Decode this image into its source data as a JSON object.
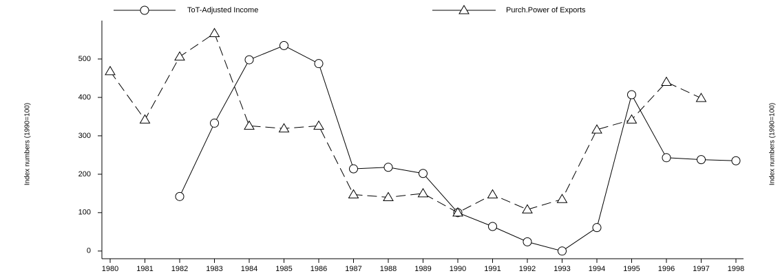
{
  "chart_data": {
    "type": "line",
    "ylabel": "Index numbers (1990=100)",
    "y2label": "Index numbers (1990=100)",
    "categories": [
      "1980",
      "1981",
      "1982",
      "1983",
      "1984",
      "1985",
      "1986",
      "1987",
      "1988",
      "1989",
      "1990",
      "1991",
      "1992",
      "1993",
      "1994",
      "1995",
      "1996",
      "1997",
      "1998"
    ],
    "series": [
      {
        "name": "ToT-Adjusted Income",
        "color": "#000000",
        "marker": "circle",
        "dash": "solid",
        "values": [
          null,
          null,
          142,
          333,
          498,
          535,
          488,
          214,
          218,
          202,
          100,
          64,
          24,
          0,
          61,
          407,
          243,
          238,
          235
        ]
      },
      {
        "name": "Purch.Power of Exports",
        "color": "#000000",
        "marker": "triangle",
        "dash": "dashed",
        "values": [
          468,
          342,
          506,
          567,
          326,
          319,
          326,
          147,
          140,
          150,
          100,
          147,
          108,
          135,
          316,
          342,
          440,
          398,
          null
        ]
      }
    ],
    "ylim": [
      -20,
      600
    ],
    "yticks": [
      0,
      100,
      200,
      300,
      400,
      500
    ],
    "grid": false
  }
}
